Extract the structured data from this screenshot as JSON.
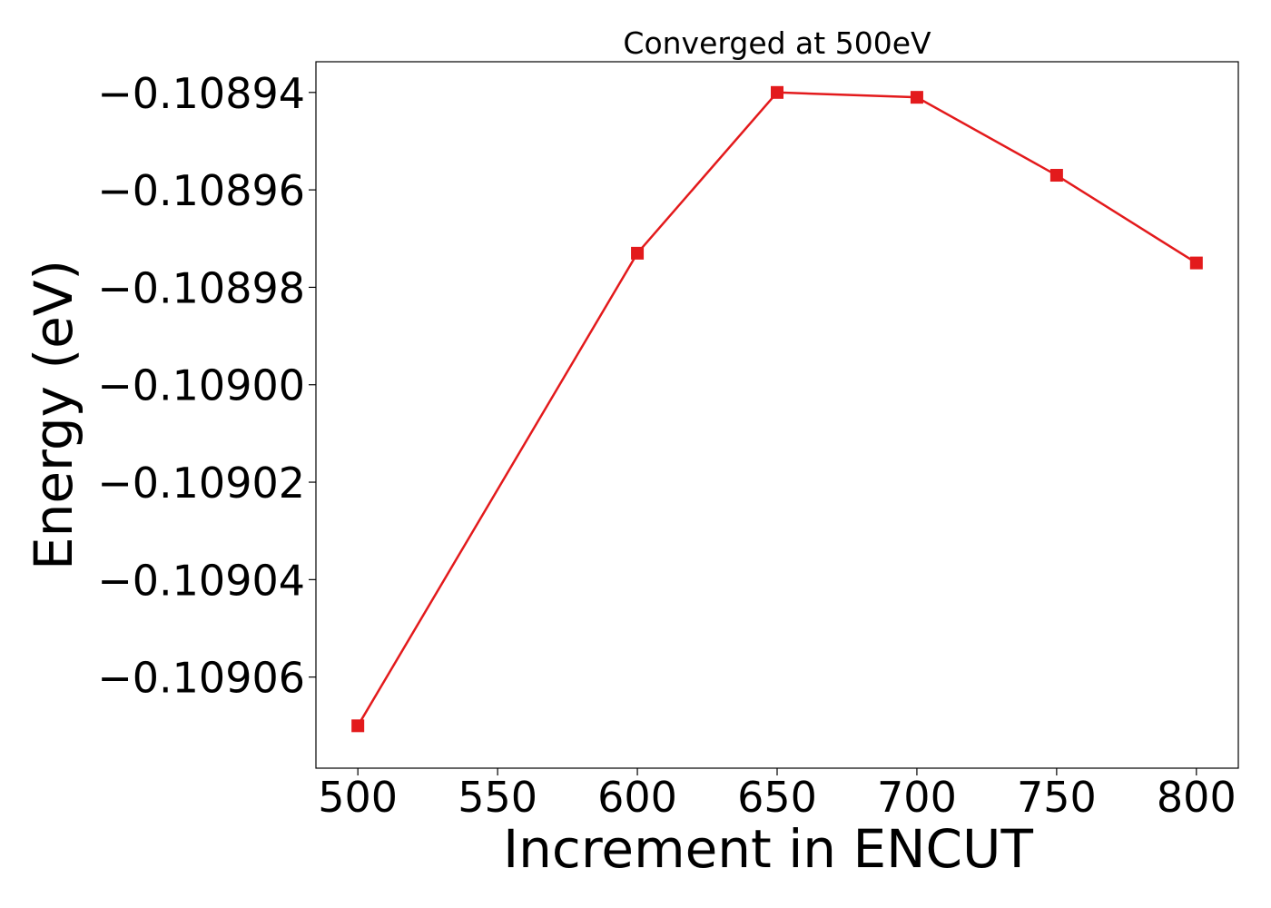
{
  "chart_data": {
    "type": "line",
    "title": "Converged at 500eV",
    "xlabel": "Increment in ENCUT",
    "ylabel": "Energy (eV)",
    "x": [
      500,
      600,
      650,
      700,
      750,
      800
    ],
    "series": [
      {
        "values": [
          -0.10907,
          -0.108973,
          -0.10894,
          -0.108941,
          -0.108957,
          -0.108975
        ],
        "color": "#e31a1c",
        "marker": "square"
      }
    ],
    "xlim": [
      485,
      815
    ],
    "ylim": [
      -0.1090787,
      -0.1089337
    ],
    "xticks": [
      500,
      550,
      600,
      650,
      700,
      750,
      800
    ],
    "xtick_labels": [
      "500",
      "550",
      "600",
      "650",
      "700",
      "750",
      "800"
    ],
    "yticks": [
      -0.10906,
      -0.10904,
      -0.10902,
      -0.109,
      -0.10898,
      -0.10896,
      -0.10894
    ],
    "ytick_labels": [
      "−0.10906",
      "−0.10904",
      "−0.10902",
      "−0.10900",
      "−0.10898",
      "−0.10896",
      "−0.10894"
    ],
    "grid": false,
    "legend": "none"
  }
}
